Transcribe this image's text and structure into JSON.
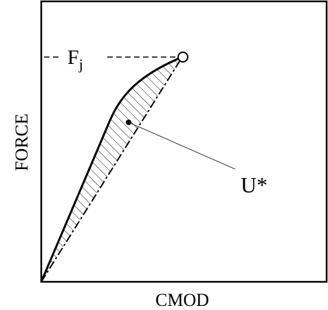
{
  "axes": {
    "x_label": "CMOD",
    "y_label": "FORCE"
  },
  "annotations": {
    "peak_force": {
      "symbol": "F",
      "subscript": "j"
    },
    "area": "U*"
  }
}
